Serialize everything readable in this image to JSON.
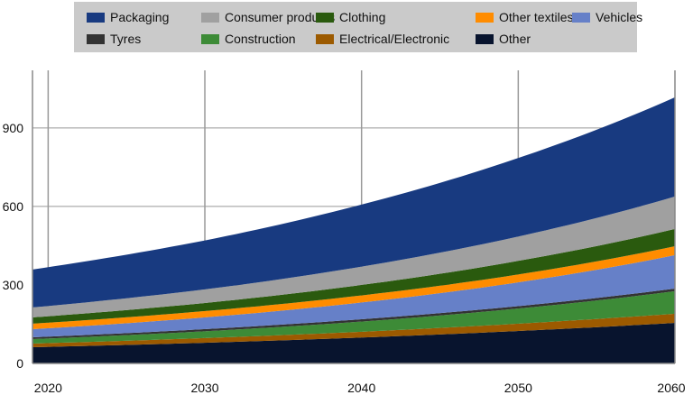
{
  "chart_data": {
    "type": "area",
    "stacked": true,
    "title": "",
    "xlabel": "",
    "ylabel": "",
    "x": [
      2019,
      2030,
      2040,
      2050,
      2060
    ],
    "xlim": [
      2019,
      2060
    ],
    "ylim": [
      0,
      1120
    ],
    "xticks": [
      "2020",
      "2030",
      "2040",
      "2050",
      "2060"
    ],
    "yticks": [
      "0",
      "300",
      "600",
      "900"
    ],
    "grid": true,
    "legend_position": "top",
    "series": [
      {
        "name": "Other",
        "color": "#08142e",
        "values": [
          62,
          79,
          99,
          124,
          155
        ]
      },
      {
        "name": "Electrical/Electronic",
        "color": "#9c5a00",
        "values": [
          14,
          18,
          22,
          28,
          35
        ]
      },
      {
        "name": "Construction",
        "color": "#3d8b37",
        "values": [
          17,
          26,
          39,
          58,
          86
        ]
      },
      {
        "name": "Tyres",
        "color": "#333333",
        "values": [
          7,
          8,
          9,
          9,
          10
        ]
      },
      {
        "name": "Vehicles",
        "color": "#6680c8",
        "values": [
          31,
          45,
          64,
          91,
          128
        ]
      },
      {
        "name": "Other textiles",
        "color": "#ff8c00",
        "values": [
          21,
          24,
          27,
          30,
          34
        ]
      },
      {
        "name": "Clothing",
        "color": "#2a5a0e",
        "values": [
          24,
          31,
          40,
          52,
          66
        ]
      },
      {
        "name": "Consumer products",
        "color": "#a0a0a0",
        "values": [
          38,
          52,
          70,
          93,
          124
        ]
      },
      {
        "name": "Packaging",
        "color": "#183a80",
        "values": [
          145,
          187,
          237,
          300,
          379
        ]
      }
    ],
    "legend_order": [
      "Packaging",
      "Consumer products",
      "Clothing",
      "Other textiles",
      "Vehicles",
      "Tyres",
      "Construction",
      "Electrical/Electronic",
      "Other"
    ]
  }
}
